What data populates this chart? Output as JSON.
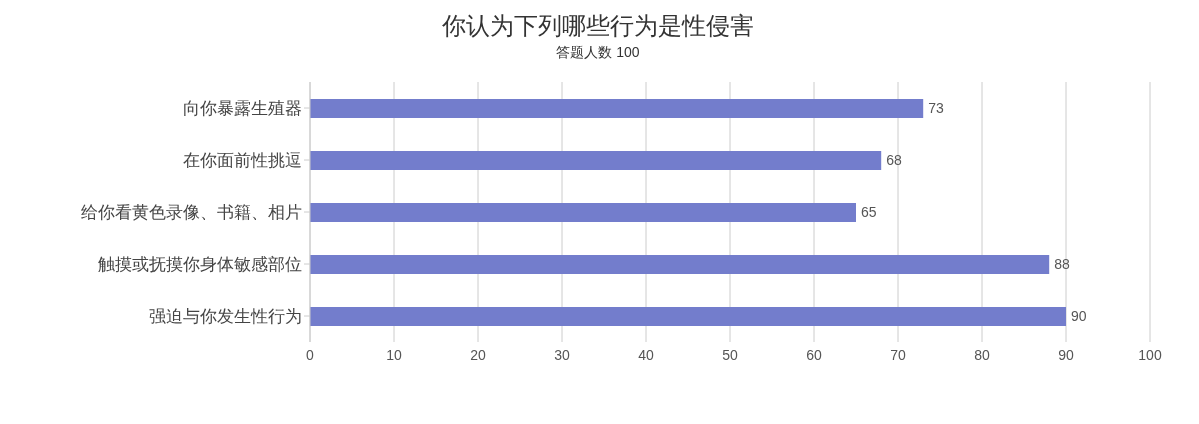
{
  "chart_data": {
    "type": "bar",
    "orientation": "horizontal",
    "title": "你认为下列哪些行为是性侵害",
    "subtitle": "答题人数 100",
    "categories": [
      "向你暴露生殖器",
      "在你面前性挑逗",
      "给你看黄色录像、书籍、相片",
      "触摸或抚摸你身体敏感部位",
      "强迫与你发生性行为"
    ],
    "values": [
      73,
      68,
      65,
      88,
      90
    ],
    "color": "#737dcc",
    "xlim": [
      0,
      100
    ],
    "xticks": [
      0,
      10,
      20,
      30,
      40,
      50,
      60,
      70,
      80,
      90,
      100
    ],
    "grid": "x",
    "data_labels": true,
    "legend": false
  }
}
